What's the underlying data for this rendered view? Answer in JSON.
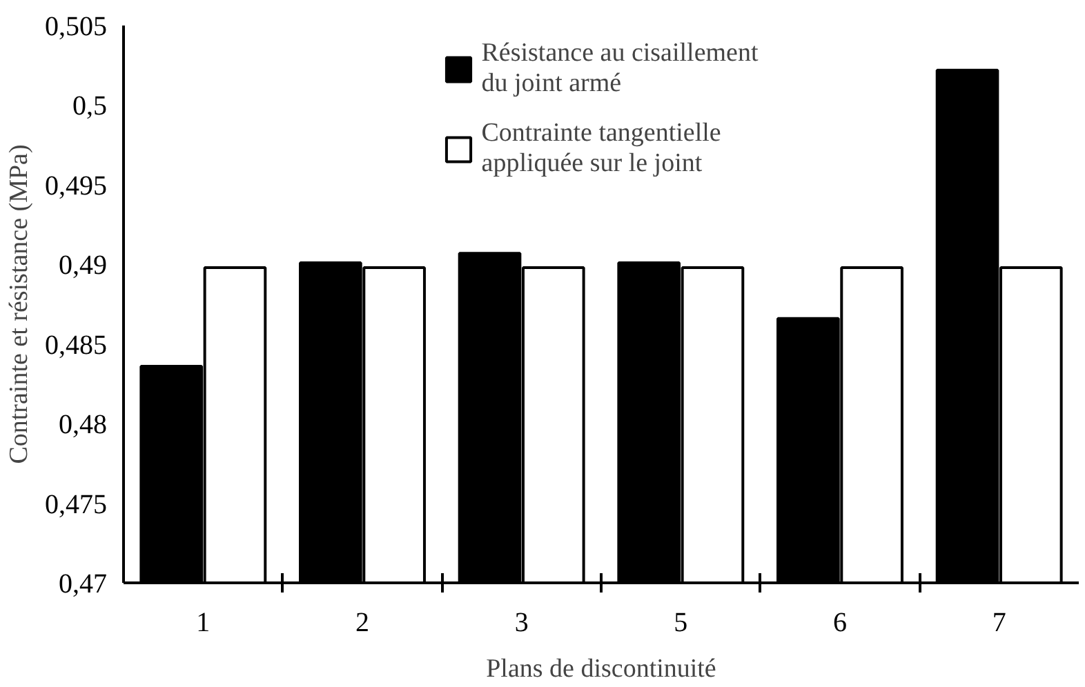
{
  "chart_data": {
    "type": "bar",
    "xlabel": "Plans de discontinuité",
    "ylabel": "Contrainte et résistance (MPa)",
    "categories": [
      "1",
      "2",
      "3",
      "5",
      "6",
      "7"
    ],
    "series": [
      {
        "name": "Résistance au cisaillement du joint armé",
        "color": "#000000",
        "values": [
          0.4836,
          0.4901,
          0.4907,
          0.4901,
          0.4866,
          0.5022
        ]
      },
      {
        "name": "Contrainte tangentielle appliquée sur le joint",
        "color": "#ffffff",
        "values": [
          0.4898,
          0.4898,
          0.4898,
          0.4898,
          0.4898,
          0.4898
        ]
      }
    ],
    "ylim": [
      0.47,
      0.505
    ],
    "yticks": [
      {
        "value": 0.47,
        "label": "0,47"
      },
      {
        "value": 0.475,
        "label": "0,475"
      },
      {
        "value": 0.48,
        "label": "0,48"
      },
      {
        "value": 0.485,
        "label": "0,485"
      },
      {
        "value": 0.49,
        "label": "0,49"
      },
      {
        "value": 0.495,
        "label": "0,495"
      },
      {
        "value": 0.5,
        "label": "0,5"
      },
      {
        "value": 0.505,
        "label": "0,505"
      }
    ],
    "grid": false,
    "legend": "top"
  }
}
